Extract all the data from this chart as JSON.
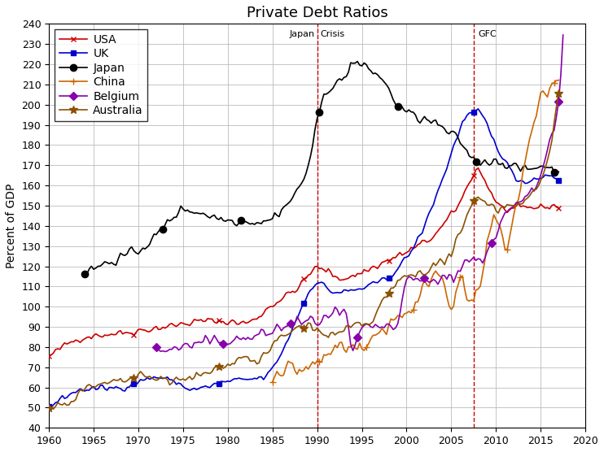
{
  "title": "Private Debt Ratios",
  "ylabel": "Percent of GDP",
  "xlim": [
    1960,
    2020
  ],
  "ylim": [
    40,
    240
  ],
  "yticks": [
    40,
    50,
    60,
    70,
    80,
    90,
    100,
    110,
    120,
    130,
    140,
    150,
    160,
    170,
    180,
    190,
    200,
    210,
    220,
    230,
    240
  ],
  "xticks": [
    1960,
    1965,
    1970,
    1975,
    1980,
    1985,
    1990,
    1995,
    2000,
    2005,
    2010,
    2015,
    2020
  ],
  "japan_crisis_x": 1990,
  "gfc_x": 2007.5,
  "vline_color": "#cc0000",
  "colors": {
    "USA": "#cc0000",
    "UK": "#0000cc",
    "Japan": "#000000",
    "China": "#cc6600",
    "Belgium": "#8800aa",
    "Australia": "#8B5000"
  },
  "markers": {
    "USA": "x",
    "UK": "s",
    "Japan": "o",
    "China": "+",
    "Belgium": "D",
    "Australia": "*"
  },
  "marker_sizes": {
    "USA": 5,
    "UK": 5,
    "Japan": 6,
    "China": 6,
    "Belgium": 5,
    "Australia": 7
  },
  "USA_anchor": [
    [
      1960,
      75
    ],
    [
      1964,
      85
    ],
    [
      1968,
      87
    ],
    [
      1973,
      90
    ],
    [
      1978,
      93
    ],
    [
      1982,
      92
    ],
    [
      1985,
      101
    ],
    [
      1988,
      110
    ],
    [
      1990,
      119
    ],
    [
      1993,
      114
    ],
    [
      1995,
      117
    ],
    [
      1998,
      123
    ],
    [
      2000,
      127
    ],
    [
      2003,
      135
    ],
    [
      2006,
      152
    ],
    [
      2008,
      168
    ],
    [
      2009,
      160
    ],
    [
      2011,
      148
    ],
    [
      2014,
      149
    ],
    [
      2017,
      150
    ]
  ],
  "UK_anchor": [
    [
      1960,
      50
    ],
    [
      1964,
      59
    ],
    [
      1968,
      60
    ],
    [
      1972,
      65
    ],
    [
      1974,
      63
    ],
    [
      1976,
      59
    ],
    [
      1980,
      63
    ],
    [
      1984,
      65
    ],
    [
      1986,
      77
    ],
    [
      1988,
      97
    ],
    [
      1990,
      112
    ],
    [
      1992,
      107
    ],
    [
      1995,
      109
    ],
    [
      1998,
      115
    ],
    [
      2001,
      131
    ],
    [
      2004,
      163
    ],
    [
      2007,
      195
    ],
    [
      2008,
      196
    ],
    [
      2010,
      180
    ],
    [
      2013,
      162
    ],
    [
      2016,
      165
    ],
    [
      2017,
      163
    ]
  ],
  "Japan_anchor": [
    [
      1964,
      117
    ],
    [
      1965,
      119
    ],
    [
      1969,
      126
    ],
    [
      1970,
      128
    ],
    [
      1972,
      135
    ],
    [
      1974,
      145
    ],
    [
      1975,
      148
    ],
    [
      1980,
      143
    ],
    [
      1984,
      142
    ],
    [
      1986,
      148
    ],
    [
      1988,
      159
    ],
    [
      1989,
      170
    ],
    [
      1990,
      191
    ],
    [
      1991,
      207
    ],
    [
      1993,
      213
    ],
    [
      1994,
      221
    ],
    [
      1995,
      219
    ],
    [
      1997,
      214
    ],
    [
      1999,
      200
    ],
    [
      2001,
      194
    ],
    [
      2003,
      191
    ],
    [
      2005,
      185
    ],
    [
      2006,
      182
    ],
    [
      2007,
      175
    ],
    [
      2008,
      172
    ],
    [
      2010,
      172
    ],
    [
      2013,
      168
    ],
    [
      2014,
      168
    ],
    [
      2015,
      170
    ],
    [
      2017,
      165
    ]
  ],
  "China_anchor": [
    [
      1985,
      69
    ],
    [
      1988,
      69
    ],
    [
      1990,
      72
    ],
    [
      1993,
      82
    ],
    [
      1995,
      79
    ],
    [
      1997,
      88
    ],
    [
      1999,
      95
    ],
    [
      2000,
      98
    ],
    [
      2001,
      100
    ],
    [
      2003,
      117
    ],
    [
      2004,
      115
    ],
    [
      2005,
      102
    ],
    [
      2006,
      112
    ],
    [
      2007,
      103
    ],
    [
      2008,
      105
    ],
    [
      2009,
      130
    ],
    [
      2010,
      143
    ],
    [
      2011,
      130
    ],
    [
      2012,
      145
    ],
    [
      2013,
      165
    ],
    [
      2014,
      185
    ],
    [
      2015,
      205
    ],
    [
      2016,
      208
    ],
    [
      2017,
      212
    ]
  ],
  "Belgium_anchor": [
    [
      1972,
      78
    ],
    [
      1975,
      80
    ],
    [
      1979,
      83
    ],
    [
      1982,
      84
    ],
    [
      1985,
      88
    ],
    [
      1988,
      92
    ],
    [
      1990,
      93
    ],
    [
      1993,
      97
    ],
    [
      1994,
      78
    ],
    [
      1995,
      88
    ],
    [
      1997,
      90
    ],
    [
      1999,
      90
    ],
    [
      2000,
      113
    ],
    [
      2003,
      113
    ],
    [
      2005,
      115
    ],
    [
      2006,
      119
    ],
    [
      2007,
      124
    ],
    [
      2008,
      122
    ],
    [
      2009,
      128
    ],
    [
      2010,
      135
    ],
    [
      2011,
      145
    ],
    [
      2013,
      152
    ],
    [
      2015,
      165
    ],
    [
      2016,
      185
    ],
    [
      2017,
      200
    ],
    [
      2017.5,
      235
    ]
  ],
  "Australia_anchor": [
    [
      1960,
      50
    ],
    [
      1963,
      55
    ],
    [
      1964,
      59
    ],
    [
      1966,
      61
    ],
    [
      1968,
      63
    ],
    [
      1970,
      65
    ],
    [
      1972,
      65
    ],
    [
      1974,
      63
    ],
    [
      1977,
      66
    ],
    [
      1979,
      70
    ],
    [
      1980,
      72
    ],
    [
      1982,
      75
    ],
    [
      1983,
      73
    ],
    [
      1985,
      80
    ],
    [
      1986,
      85
    ],
    [
      1987,
      87
    ],
    [
      1988,
      90
    ],
    [
      1989,
      91
    ],
    [
      1990,
      88
    ],
    [
      1991,
      86
    ],
    [
      1992,
      86
    ],
    [
      1994,
      90
    ],
    [
      1996,
      92
    ],
    [
      1997,
      100
    ],
    [
      1998,
      106
    ],
    [
      1999,
      112
    ],
    [
      2000,
      115
    ],
    [
      2002,
      118
    ],
    [
      2004,
      122
    ],
    [
      2006,
      135
    ],
    [
      2007,
      147
    ],
    [
      2008,
      155
    ],
    [
      2009,
      152
    ],
    [
      2010,
      148
    ],
    [
      2011,
      150
    ],
    [
      2013,
      152
    ],
    [
      2015,
      162
    ],
    [
      2016,
      178
    ],
    [
      2017,
      207
    ]
  ]
}
